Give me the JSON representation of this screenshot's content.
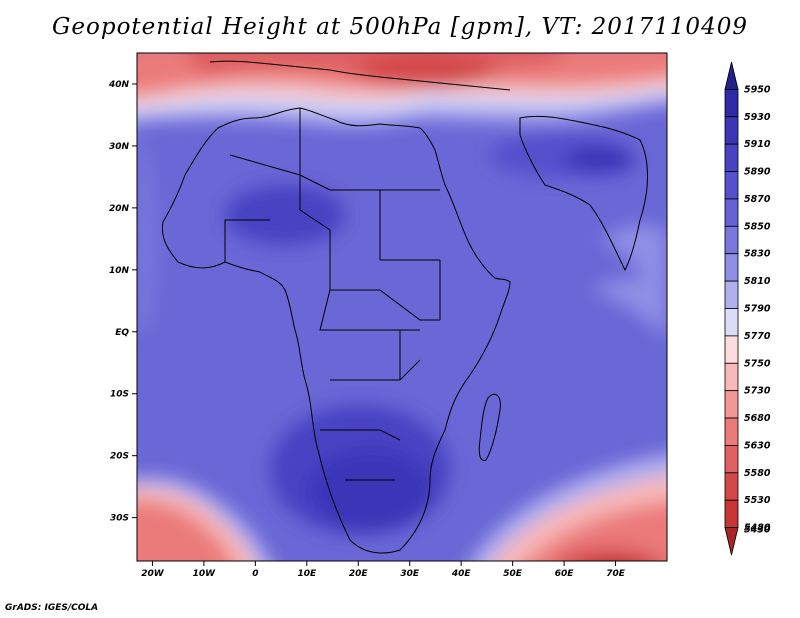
{
  "map": {
    "title": "Geopotential Height at 500hPa [gpm], VT: 2017110409",
    "variable": "Geopotential Height",
    "level": "500hPa",
    "units": "gpm",
    "valid_time": "2017110409",
    "region": "Africa",
    "lat_labels": [
      "40N",
      "30N",
      "20N",
      "10N",
      "EQ",
      "10S",
      "20S",
      "30S"
    ],
    "lat_values": [
      40,
      30,
      20,
      10,
      0,
      -10,
      -20,
      -30
    ],
    "lon_labels": [
      "20W",
      "10W",
      "0",
      "10E",
      "20E",
      "30E",
      "40E",
      "50E",
      "60E",
      "70E"
    ],
    "lon_values": [
      -20,
      -10,
      0,
      10,
      20,
      30,
      40,
      50,
      60,
      70
    ],
    "extent": {
      "lon_min": -23,
      "lon_max": 80,
      "lat_min": -37,
      "lat_max": 45
    }
  },
  "colorbar": {
    "labels": [
      "5950",
      "5930",
      "5910",
      "5890",
      "5870",
      "5850",
      "5830",
      "5810",
      "5790",
      "5770",
      "5750",
      "5730",
      "5680",
      "5630",
      "5580",
      "5530",
      "5480",
      "5430"
    ],
    "colors": [
      "#232087",
      "#2f2aa6",
      "#3b36b8",
      "#4743c2",
      "#5550cc",
      "#6562d5",
      "#7a78de",
      "#908fe6",
      "#b0b0f0",
      "#dcdcf8",
      "#fcdcdc",
      "#f8b8b8",
      "#f29696",
      "#eb7a7a",
      "#e06161",
      "#d44848",
      "#c83636",
      "#a92424"
    ]
  },
  "credit": "GrADS: IGES/COLA"
}
